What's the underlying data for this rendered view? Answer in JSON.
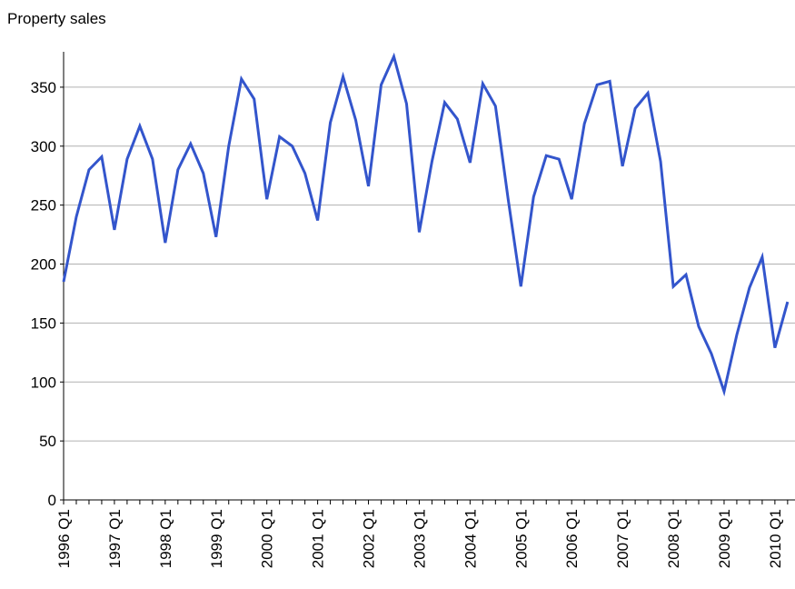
{
  "chart_data": {
    "type": "line",
    "title": "Property sales",
    "categories": [
      "1996 Q1",
      null,
      null,
      null,
      "1997 Q1",
      null,
      null,
      null,
      "1998 Q1",
      null,
      null,
      null,
      "1999 Q1",
      null,
      null,
      null,
      "2000 Q1",
      null,
      null,
      null,
      "2001 Q1",
      null,
      null,
      null,
      "2002 Q1",
      null,
      null,
      null,
      "2003 Q1",
      null,
      null,
      null,
      "2004 Q1",
      null,
      null,
      null,
      "2005 Q1",
      null,
      null,
      null,
      "2006 Q1",
      null,
      null,
      null,
      "2007 Q1",
      null,
      null,
      null,
      "2008 Q1",
      null,
      null,
      null,
      "2009 Q1",
      null,
      null,
      null,
      "2010 Q1",
      null
    ],
    "series": [
      {
        "name": "Property sales",
        "color": "#3355cc",
        "values": [
          185,
          240,
          280,
          291,
          229,
          289,
          317,
          289,
          218,
          280,
          302,
          277,
          223,
          300,
          357,
          340,
          255,
          308,
          300,
          277,
          237,
          320,
          359,
          322,
          266,
          352,
          376,
          336,
          227,
          287,
          337,
          323,
          286,
          353,
          334,
          255,
          181,
          257,
          292,
          289,
          255,
          319,
          352,
          355,
          283,
          332,
          345,
          287,
          181,
          191,
          147,
          124,
          92,
          140,
          180,
          206,
          129,
          168
        ]
      }
    ],
    "ylim": [
      0,
      380
    ],
    "yticks": [
      0,
      50,
      100,
      150,
      200,
      250,
      300,
      350
    ],
    "grid": true
  }
}
